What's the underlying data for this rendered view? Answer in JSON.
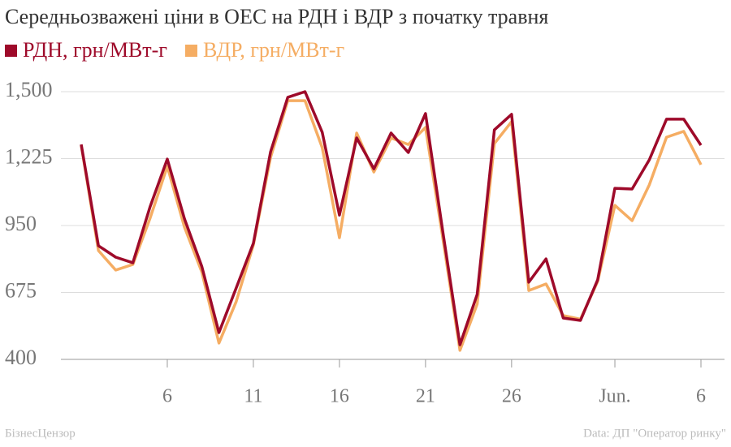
{
  "chart_data": {
    "type": "line",
    "title": "Середньозважені ціни в ОЕС на РДН і ВДР з початку травня",
    "categories": [
      null,
      null,
      null,
      null,
      null,
      "6",
      null,
      null,
      null,
      null,
      "11",
      null,
      null,
      null,
      null,
      "16",
      null,
      null,
      null,
      null,
      "21",
      null,
      null,
      null,
      null,
      "26",
      null,
      null,
      null,
      null,
      null,
      "Jun.",
      null,
      null,
      null,
      null,
      "6"
    ],
    "series": [
      {
        "name": "РДН, грн/МВт-г",
        "color": "#9e0a2a",
        "values": [
          1283,
          867,
          820,
          797,
          1027,
          1223,
          977,
          783,
          510,
          693,
          877,
          1253,
          1477,
          1500,
          1333,
          993,
          1310,
          1183,
          1330,
          1250,
          1410,
          927,
          460,
          667,
          1343,
          1407,
          717,
          813,
          570,
          560,
          727,
          1103,
          1100,
          1220,
          1387,
          1387,
          1280
        ]
      },
      {
        "name": "ВДР, грн/МВт-г",
        "color": "#f5ad63",
        "values": [
          1280,
          847,
          767,
          790,
          980,
          1193,
          943,
          760,
          467,
          637,
          870,
          1230,
          1463,
          1463,
          1270,
          900,
          1330,
          1170,
          1310,
          1283,
          1353,
          900,
          437,
          627,
          1287,
          1377,
          683,
          710,
          580,
          565,
          720,
          1033,
          970,
          1117,
          1313,
          1337,
          1200
        ]
      }
    ],
    "ylim": [
      400,
      1500
    ],
    "yticks": [
      400,
      675,
      950,
      {
        "value": 1225,
        "label": "1,225"
      },
      {
        "value": 1500,
        "label": "1,500"
      }
    ],
    "grid": true,
    "source_left": "БізнесЦензор",
    "source_right": "Data: ДП \"Оператор ринку\""
  }
}
